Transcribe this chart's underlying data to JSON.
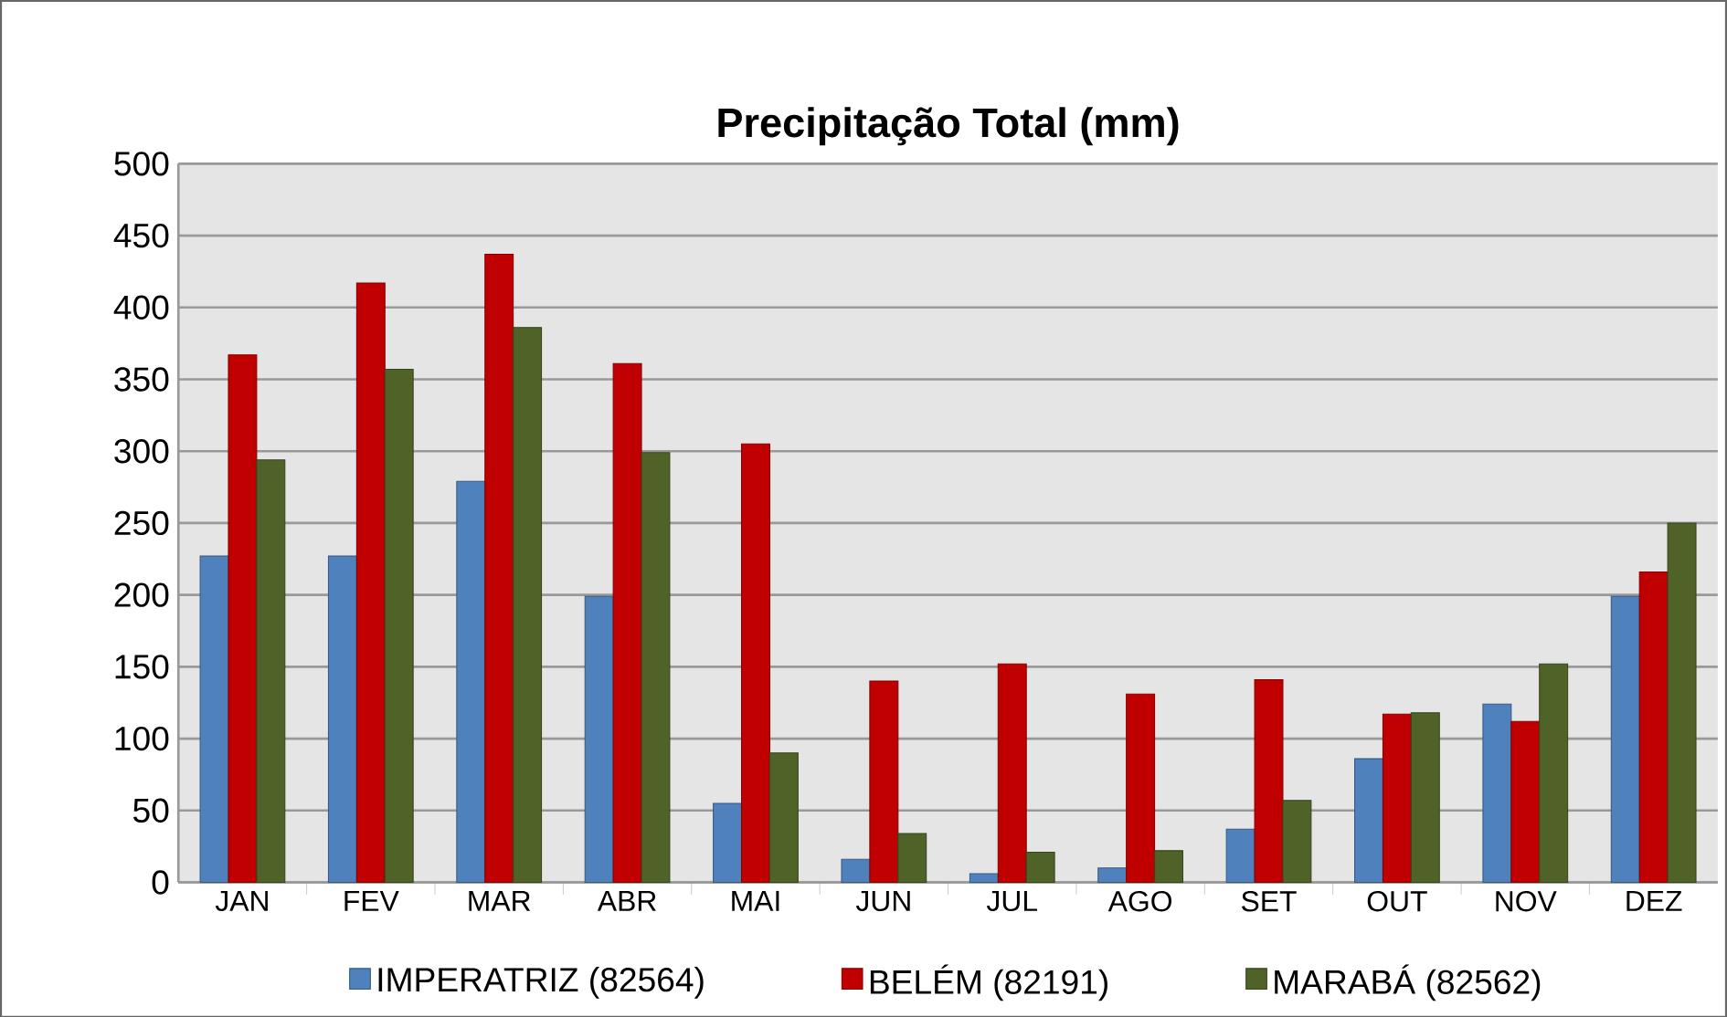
{
  "chart_data": {
    "type": "bar",
    "title": "Precipitação Total (mm)",
    "categories": [
      "JAN",
      "FEV",
      "MAR",
      "ABR",
      "MAI",
      "JUN",
      "JUL",
      "AGO",
      "SET",
      "OUT",
      "NOV",
      "DEZ"
    ],
    "series": [
      {
        "name": "IMPERATRIZ (82564)",
        "color": "#4f81bd",
        "values": [
          227,
          227,
          279,
          199,
          55,
          16,
          6,
          10,
          37,
          86,
          124,
          199
        ]
      },
      {
        "name": "BELÉM (82191)",
        "color": "#c00000",
        "values": [
          367,
          417,
          437,
          361,
          305,
          140,
          152,
          131,
          141,
          117,
          112,
          216
        ]
      },
      {
        "name": "MARABÁ (82562)",
        "color": "#4f6228",
        "values": [
          294,
          357,
          386,
          299,
          90,
          34,
          21,
          22,
          57,
          118,
          152,
          250
        ]
      }
    ],
    "ylim": [
      0,
      500
    ],
    "yticks": [
      0,
      50,
      100,
      150,
      200,
      250,
      300,
      350,
      400,
      450,
      500
    ],
    "grid": "y",
    "legend": "bottom"
  }
}
